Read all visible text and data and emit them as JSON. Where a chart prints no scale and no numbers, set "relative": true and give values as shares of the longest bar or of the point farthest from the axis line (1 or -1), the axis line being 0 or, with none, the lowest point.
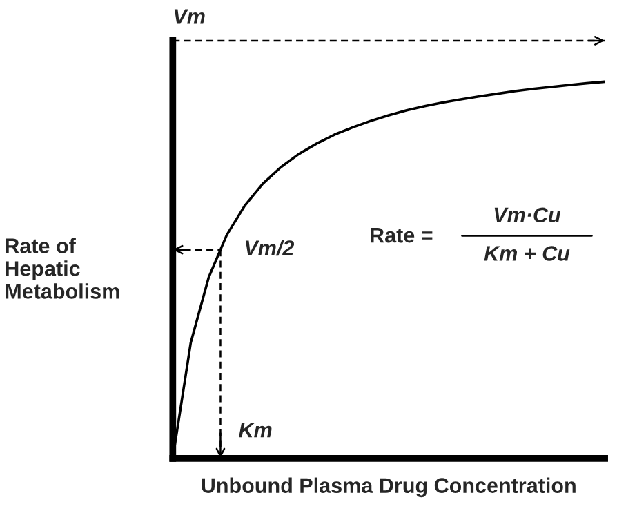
{
  "chart_data": {
    "type": "line",
    "relative": true,
    "xlabel": "Unbound Plasma Drug Concentration",
    "ylabel": "Rate of\nHepatic\nMetabolism",
    "categories": [
      null,
      null,
      null,
      null,
      null,
      null,
      null,
      null,
      null,
      null,
      null,
      null,
      null,
      null,
      null,
      null,
      null,
      null,
      null,
      null,
      null,
      null,
      null,
      null,
      null
    ],
    "series": [
      {
        "color": "#000000",
        "values": [
          0,
          0.307,
          0.481,
          0.593,
          0.671,
          0.729,
          0.773,
          0.808,
          0.836,
          0.86,
          0.879,
          0.896,
          0.911,
          0.924,
          0.935,
          0.945,
          0.953,
          0.961,
          0.968,
          0.975,
          0.981,
          0.986,
          0.991,
          0.996,
          1
        ]
      }
    ],
    "ref_lines": [
      {
        "axis": "y",
        "value": 1.109,
        "label": "Vm",
        "line_style": "dashed",
        "color": "#000000"
      },
      {
        "axis": "y",
        "value": 0.554,
        "label": "Vm/2",
        "line_style": "dashed",
        "color": "#000000"
      }
    ],
    "annotations": [
      "Km",
      "Rate =",
      "Vm·Cu",
      "Km + Cu"
    ],
    "line_style": "solid"
  }
}
